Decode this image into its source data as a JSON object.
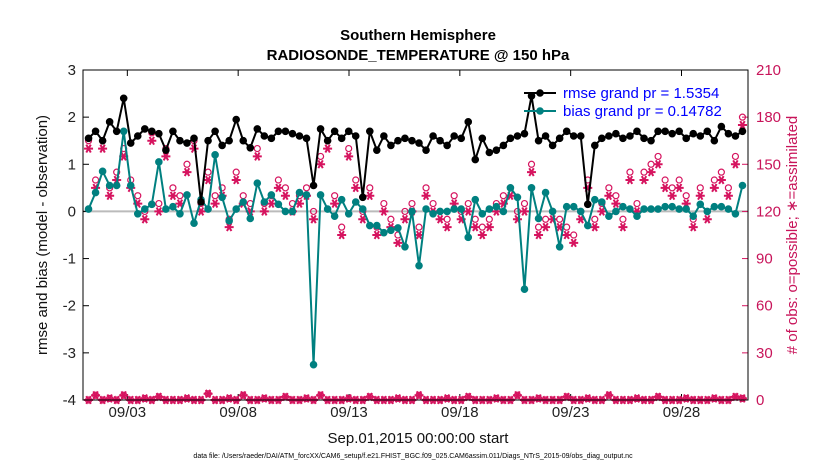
{
  "chart_data": {
    "type": "line",
    "title_line1": "Southern Hemisphere",
    "title_line2": "RADIOSONDE_TEMPERATURE @ 150 hPa",
    "xlabel": "Sep.01,2015 00:00:00 start",
    "ylabel_left": "rmse and bias (model - observation)",
    "ylabel_right": "# of obs: o=possible; ∗=assimilated",
    "footnote": "data file: /Users/raeder/DAI/ATM_forcXX/CAM6_setup/f.e21.FHIST_BGC.f09_025.CAM6assim.011/Diags_NTrS_2015-09/obs_diag_output.nc",
    "xlim": [
      1,
      31
    ],
    "ylim_left": [
      -4,
      3
    ],
    "ylim_right": [
      0,
      210
    ],
    "x_tick_values": [
      3,
      8,
      13,
      18,
      23,
      28
    ],
    "x_tick_labels": [
      "09/03",
      "09/08",
      "09/13",
      "09/18",
      "09/23",
      "09/28"
    ],
    "y_left_ticks": [
      "-4",
      "-3",
      "-2",
      "-1",
      "0",
      "1",
      "2",
      "3"
    ],
    "y_right_ticks": [
      "0",
      "30",
      "60",
      "90",
      "120",
      "150",
      "180",
      "210"
    ],
    "colors": {
      "rmse": "#000000",
      "bias": "#008080",
      "obs": "#d6145f",
      "zero_line": "#bbbbbb"
    },
    "series": [
      {
        "name": "rmse",
        "legend": "rmse grand pr = 1.5354",
        "values": [
          1.55,
          1.7,
          1.5,
          1.9,
          1.7,
          2.4,
          1.45,
          1.6,
          1.75,
          1.7,
          1.65,
          1.3,
          1.7,
          1.5,
          1.45,
          1.55,
          0.2,
          1.5,
          1.7,
          1.4,
          1.5,
          1.95,
          1.5,
          1.35,
          1.75,
          1.6,
          1.55,
          1.7,
          1.7,
          1.65,
          1.6,
          1.55,
          0.55,
          1.75,
          1.5,
          1.7,
          1.55,
          1.7,
          1.6,
          0.3,
          1.7,
          1.3,
          1.6,
          1.4,
          1.5,
          1.55,
          1.5,
          1.45,
          1.3,
          1.6,
          1.5,
          1.4,
          1.6,
          1.55,
          1.9,
          1.1,
          1.55,
          1.25,
          1.3,
          1.4,
          1.55,
          1.6,
          1.65,
          2.45,
          1.5,
          1.6,
          1.4,
          1.55,
          1.7,
          1.6,
          1.6,
          0.15,
          1.4,
          1.55,
          1.6,
          1.65,
          1.55,
          1.6,
          1.7,
          1.55,
          1.5,
          1.7,
          1.7,
          1.65,
          1.7,
          1.55,
          1.65,
          1.6,
          1.7,
          1.5,
          1.8,
          1.65,
          1.6,
          1.7
        ]
      },
      {
        "name": "bias",
        "legend": "bias grand pr = 0.14782",
        "values": [
          0.05,
          0.4,
          0.85,
          0.55,
          0.55,
          1.7,
          0.55,
          -0.05,
          0.05,
          0.15,
          1.05,
          0.05,
          0.1,
          -0.05,
          0.35,
          -0.25,
          0.25,
          0.05,
          1.2,
          0.3,
          -0.2,
          0.05,
          0.2,
          -0.15,
          0.6,
          0.2,
          0.35,
          0.15,
          0.0,
          0.0,
          0.4,
          0.35,
          -3.25,
          0.35,
          0.05,
          -0.1,
          0.25,
          -0.05,
          0.2,
          0.05,
          -0.3,
          -0.3,
          -0.45,
          -0.4,
          -0.35,
          -0.75,
          0.0,
          -1.15,
          0.05,
          -0.05,
          0.0,
          0.0,
          0.05,
          0.05,
          -0.55,
          0.25,
          -0.05,
          0.05,
          0.1,
          0.0,
          0.5,
          0.3,
          -1.65,
          0.5,
          -0.15,
          0.4,
          0.0,
          -0.75,
          0.1,
          0.1,
          0.0,
          -0.3,
          0.25,
          0.2,
          -0.1,
          0.0,
          0.1,
          0.05,
          -0.1,
          0.05,
          0.05,
          0.05,
          0.1,
          0.1,
          0.05,
          0.05,
          -0.1,
          0.15,
          0.0,
          0.1,
          0.1,
          0.05,
          -0.05,
          0.55
        ]
      },
      {
        "name": "possible",
        "legend": "",
        "values": [
          165,
          140,
          165,
          135,
          145,
          160,
          140,
          130,
          120,
          170,
          125,
          160,
          135,
          130,
          150,
          165,
          125,
          145,
          130,
          135,
          115,
          145,
          130,
          125,
          160,
          125,
          130,
          140,
          135,
          125,
          130,
          135,
          120,
          155,
          165,
          130,
          110,
          160,
          140,
          120,
          135,
          110,
          125,
          115,
          105,
          120,
          125,
          110,
          135,
          125,
          120,
          115,
          130,
          120,
          125,
          115,
          110,
          115,
          125,
          130,
          135,
          120,
          125,
          150,
          110,
          115,
          120,
          115,
          110,
          105,
          120,
          140,
          115,
          125,
          135,
          130,
          115,
          145,
          125,
          145,
          150,
          155,
          140,
          135,
          140,
          130,
          115,
          135,
          120,
          140,
          145,
          135,
          155,
          180
        ]
      },
      {
        "name": "assimilated",
        "legend": "",
        "values": [
          160,
          135,
          160,
          130,
          140,
          155,
          135,
          125,
          115,
          165,
          120,
          155,
          130,
          125,
          145,
          160,
          120,
          140,
          125,
          130,
          110,
          140,
          125,
          120,
          155,
          120,
          125,
          135,
          130,
          120,
          125,
          130,
          115,
          150,
          160,
          125,
          105,
          155,
          135,
          115,
          130,
          105,
          120,
          110,
          100,
          115,
          120,
          105,
          130,
          120,
          115,
          110,
          125,
          115,
          120,
          110,
          105,
          110,
          120,
          125,
          130,
          115,
          120,
          145,
          105,
          110,
          115,
          110,
          105,
          100,
          115,
          135,
          110,
          120,
          130,
          125,
          110,
          140,
          120,
          140,
          145,
          150,
          135,
          130,
          135,
          125,
          110,
          130,
          115,
          135,
          140,
          130,
          150,
          175
        ]
      },
      {
        "name": "possible_bottom",
        "legend": "",
        "values": [
          0,
          3,
          0,
          1,
          0,
          3,
          0,
          0,
          1,
          0,
          2,
          0,
          0,
          0,
          1,
          0,
          0,
          4,
          0,
          0,
          1,
          0,
          3,
          0,
          0,
          1,
          0,
          0,
          2,
          0,
          0,
          1,
          0,
          3,
          0,
          0,
          0,
          1,
          0,
          0,
          2,
          0,
          0,
          0,
          1,
          0,
          0,
          3,
          0,
          0,
          0,
          1,
          0,
          0,
          2,
          0,
          0,
          0,
          1,
          0,
          0,
          3,
          0,
          0,
          1,
          0,
          0,
          0,
          2,
          0,
          0,
          1,
          0,
          0,
          3,
          0,
          0,
          0,
          1,
          0,
          0,
          2,
          0,
          0,
          0,
          1,
          0,
          0,
          0,
          1,
          0,
          0,
          2,
          1
        ]
      }
    ]
  }
}
